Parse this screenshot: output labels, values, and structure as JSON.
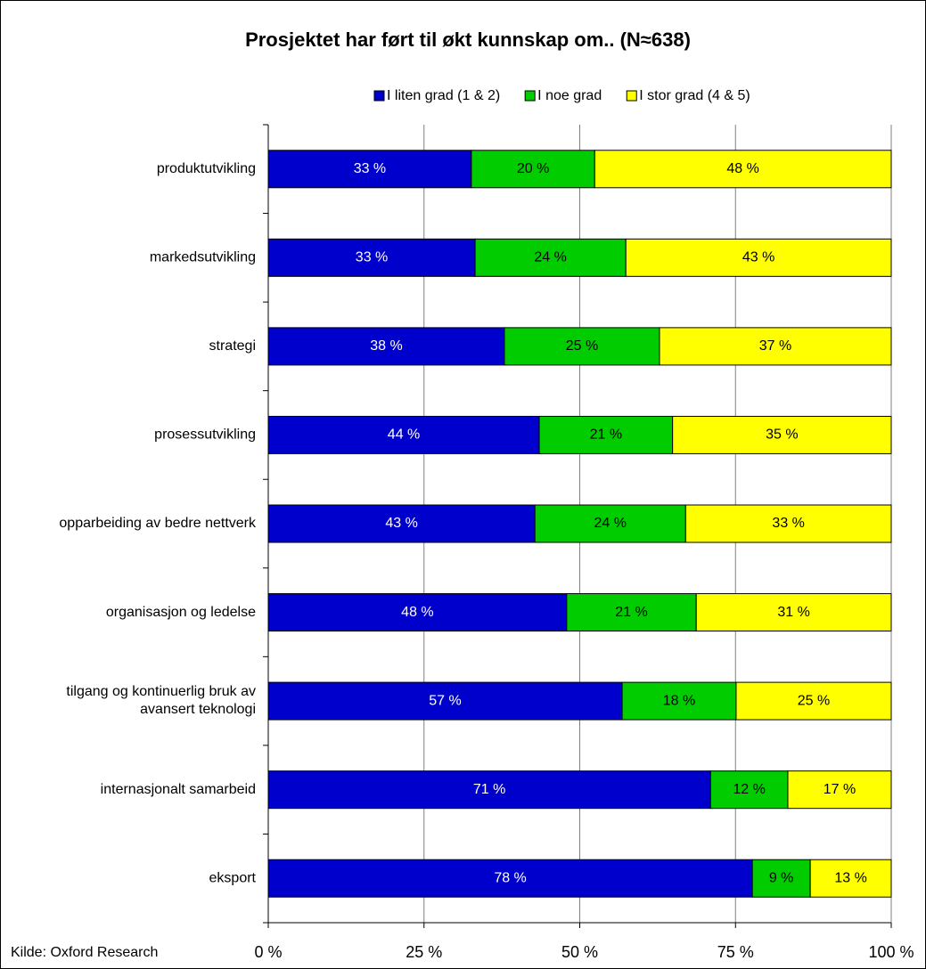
{
  "chart_data": {
    "type": "stacked-bar-horizontal",
    "title": "Prosjektet har ført til økt kunnskap om.. (N≈638)",
    "source": "Kilde: Oxford Research",
    "categories": [
      "produktutvikling",
      "markedsutvikling",
      "strategi",
      "prosessutvikling",
      "opparbeiding av bedre nettverk",
      "organisasjon og ledelse",
      "tilgang og kontinuerlig bruk av avansert teknologi",
      "internasjonalt samarbeid",
      "eksport"
    ],
    "series": [
      {
        "name": "I liten grad (1 & 2)",
        "color": "#0000cc",
        "label_color": "#ffffff",
        "values": [
          32.6,
          33.2,
          37.9,
          43.5,
          42.8,
          47.9,
          56.8,
          71.0,
          77.7
        ],
        "value_labels": [
          "33 %",
          "33 %",
          "38 %",
          "44 %",
          "43 %",
          "48 %",
          "57 %",
          "71 %",
          "78 %"
        ]
      },
      {
        "name": "I noe grad",
        "color": "#00cc00",
        "label_color": "#000000",
        "values": [
          19.8,
          24.2,
          24.9,
          21.4,
          24.2,
          20.8,
          18.3,
          12.4,
          9.3
        ],
        "value_labels": [
          "20 %",
          "24 %",
          "25 %",
          "21 %",
          "24 %",
          "21 %",
          "18 %",
          "12 %",
          "9 %"
        ]
      },
      {
        "name": "I stor grad (4 & 5)",
        "color": "#ffff00",
        "label_color": "#000000",
        "values": [
          47.6,
          42.6,
          37.2,
          35.1,
          33.0,
          31.3,
          24.9,
          16.6,
          13.0
        ],
        "value_labels": [
          "48 %",
          "43 %",
          "37 %",
          "35 %",
          "33 %",
          "31 %",
          "25 %",
          "17 %",
          "13 %"
        ]
      }
    ],
    "xlim": [
      0,
      100
    ],
    "xticks": [
      {
        "value": 0,
        "label": "0 %"
      },
      {
        "value": 25,
        "label": "25 %"
      },
      {
        "value": 50,
        "label": "50 %"
      },
      {
        "value": 75,
        "label": "75 %"
      },
      {
        "value": 100,
        "label": "100 %"
      }
    ],
    "grid": true,
    "legend": "top"
  }
}
